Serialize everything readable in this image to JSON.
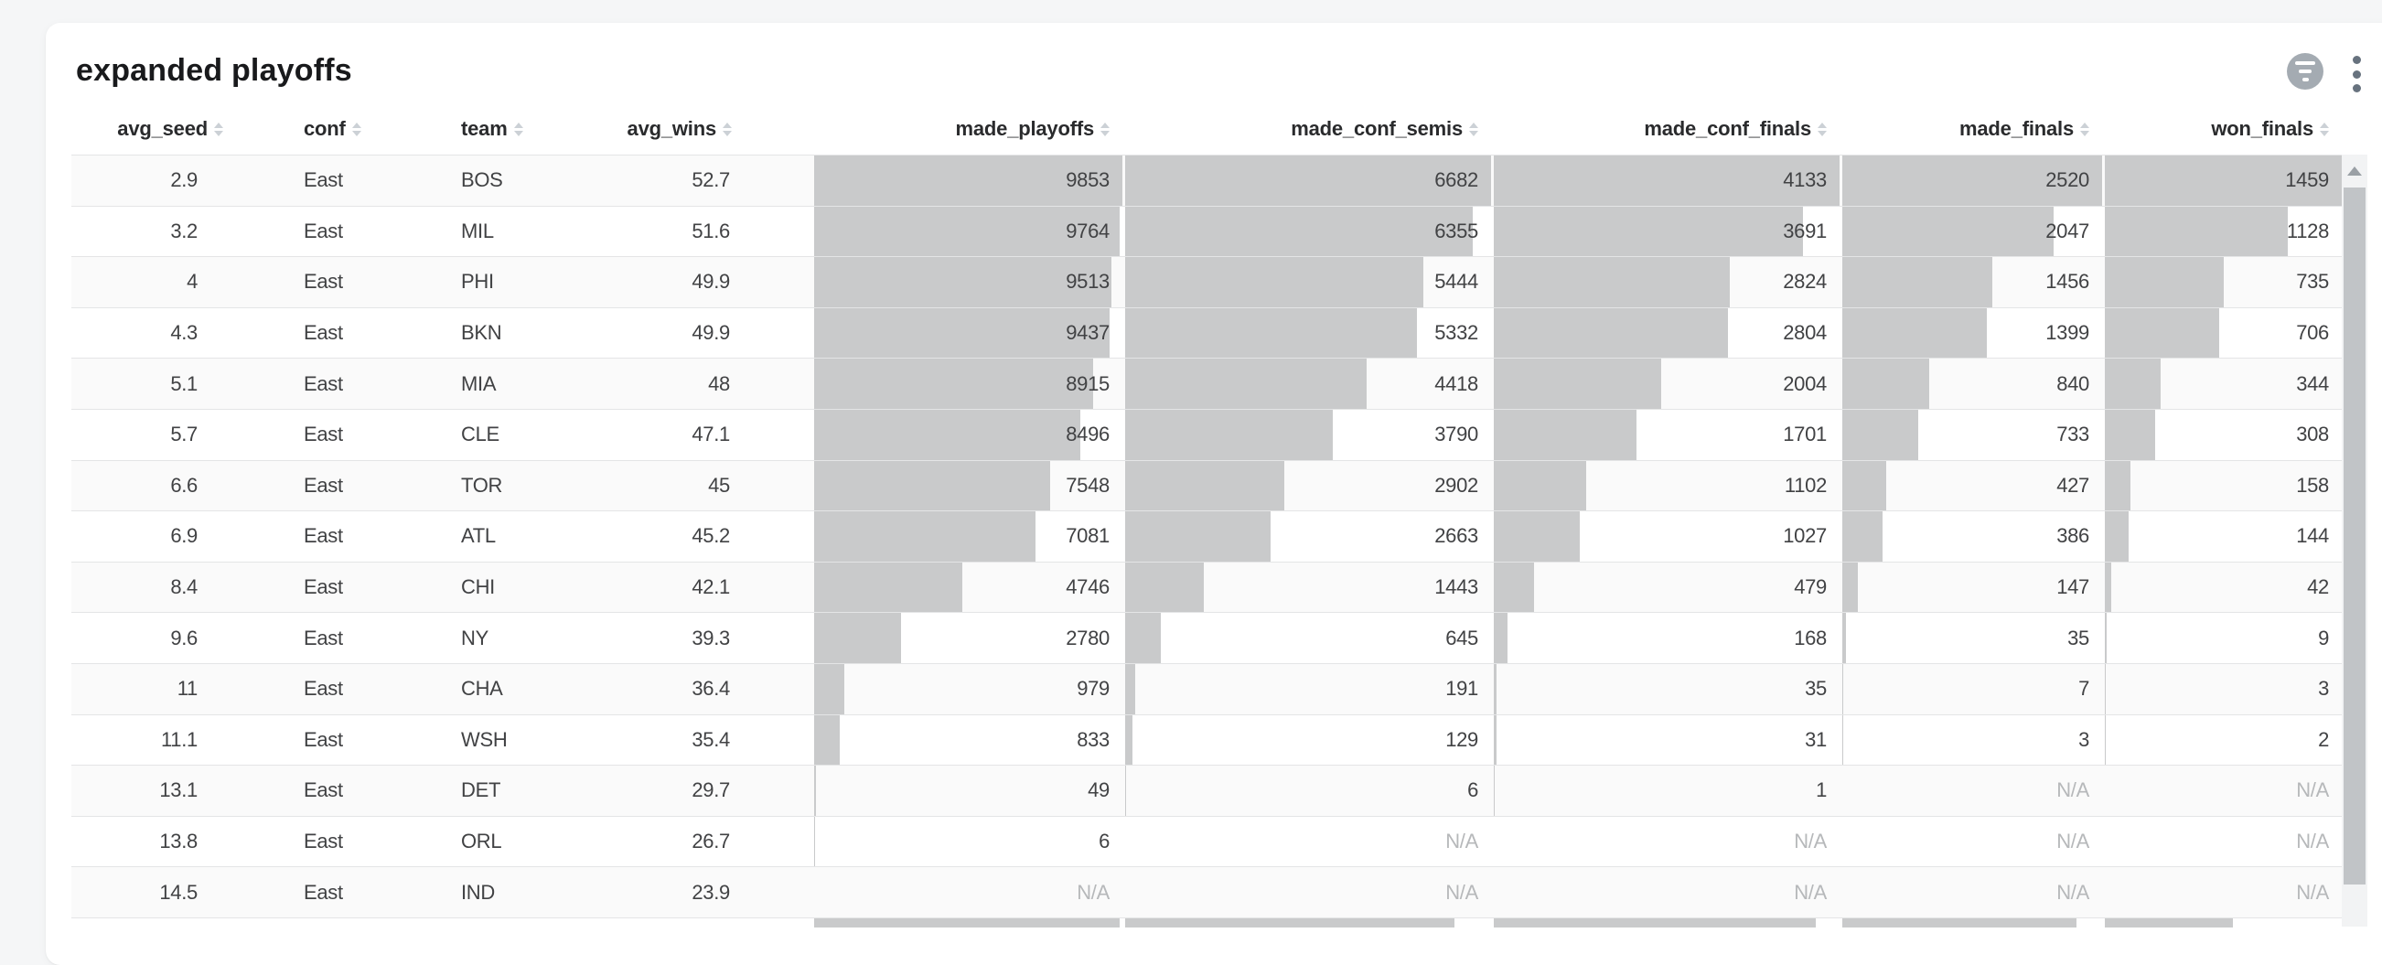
{
  "window": {
    "title": "expanded playoffs"
  },
  "toolbar": {
    "filter_button": {
      "icon": "filter-lines-icon"
    },
    "menu_button": {
      "icon": "kebab-menu-icon"
    }
  },
  "colors": {
    "bar_fill": "#c9cacb",
    "na_text": "#b6b8ba",
    "header_text": "#2a2b2d",
    "cell_text": "#414244"
  },
  "table": {
    "na_label": "N/A",
    "columns": [
      {
        "key": "avg_seed",
        "label": "avg_seed",
        "align": "right",
        "bar": false
      },
      {
        "key": "conf",
        "label": "conf",
        "align": "left",
        "bar": false
      },
      {
        "key": "team",
        "label": "team",
        "align": "left",
        "bar": false
      },
      {
        "key": "avg_wins",
        "label": "avg_wins",
        "align": "right",
        "bar": false
      },
      {
        "key": "made_playoffs",
        "label": "made_playoffs",
        "align": "right",
        "bar": true,
        "max": 9853
      },
      {
        "key": "made_conf_semis",
        "label": "made_conf_semis",
        "align": "right",
        "bar": true,
        "max": 6682
      },
      {
        "key": "made_conf_finals",
        "label": "made_conf_finals",
        "align": "right",
        "bar": true,
        "max": 4133
      },
      {
        "key": "made_finals",
        "label": "made_finals",
        "align": "right",
        "bar": true,
        "max": 2520
      },
      {
        "key": "won_finals",
        "label": "won_finals",
        "align": "right",
        "bar": true,
        "max": 1459
      }
    ],
    "rows": [
      {
        "avg_seed": "2.9",
        "conf": "East",
        "team": "BOS",
        "avg_wins": "52.7",
        "made_playoffs": "9853",
        "made_conf_semis": "6682",
        "made_conf_finals": "4133",
        "made_finals": "2520",
        "won_finals": "1459"
      },
      {
        "avg_seed": "3.2",
        "conf": "East",
        "team": "MIL",
        "avg_wins": "51.6",
        "made_playoffs": "9764",
        "made_conf_semis": "6355",
        "made_conf_finals": "3691",
        "made_finals": "2047",
        "won_finals": "1128"
      },
      {
        "avg_seed": "4",
        "conf": "East",
        "team": "PHI",
        "avg_wins": "49.9",
        "made_playoffs": "9513",
        "made_conf_semis": "5444",
        "made_conf_finals": "2824",
        "made_finals": "1456",
        "won_finals": "735"
      },
      {
        "avg_seed": "4.3",
        "conf": "East",
        "team": "BKN",
        "avg_wins": "49.9",
        "made_playoffs": "9437",
        "made_conf_semis": "5332",
        "made_conf_finals": "2804",
        "made_finals": "1399",
        "won_finals": "706"
      },
      {
        "avg_seed": "5.1",
        "conf": "East",
        "team": "MIA",
        "avg_wins": "48",
        "made_playoffs": "8915",
        "made_conf_semis": "4418",
        "made_conf_finals": "2004",
        "made_finals": "840",
        "won_finals": "344"
      },
      {
        "avg_seed": "5.7",
        "conf": "East",
        "team": "CLE",
        "avg_wins": "47.1",
        "made_playoffs": "8496",
        "made_conf_semis": "3790",
        "made_conf_finals": "1701",
        "made_finals": "733",
        "won_finals": "308"
      },
      {
        "avg_seed": "6.6",
        "conf": "East",
        "team": "TOR",
        "avg_wins": "45",
        "made_playoffs": "7548",
        "made_conf_semis": "2902",
        "made_conf_finals": "1102",
        "made_finals": "427",
        "won_finals": "158"
      },
      {
        "avg_seed": "6.9",
        "conf": "East",
        "team": "ATL",
        "avg_wins": "45.2",
        "made_playoffs": "7081",
        "made_conf_semis": "2663",
        "made_conf_finals": "1027",
        "made_finals": "386",
        "won_finals": "144"
      },
      {
        "avg_seed": "8.4",
        "conf": "East",
        "team": "CHI",
        "avg_wins": "42.1",
        "made_playoffs": "4746",
        "made_conf_semis": "1443",
        "made_conf_finals": "479",
        "made_finals": "147",
        "won_finals": "42"
      },
      {
        "avg_seed": "9.6",
        "conf": "East",
        "team": "NY",
        "avg_wins": "39.3",
        "made_playoffs": "2780",
        "made_conf_semis": "645",
        "made_conf_finals": "168",
        "made_finals": "35",
        "won_finals": "9"
      },
      {
        "avg_seed": "11",
        "conf": "East",
        "team": "CHA",
        "avg_wins": "36.4",
        "made_playoffs": "979",
        "made_conf_semis": "191",
        "made_conf_finals": "35",
        "made_finals": "7",
        "won_finals": "3"
      },
      {
        "avg_seed": "11.1",
        "conf": "East",
        "team": "WSH",
        "avg_wins": "35.4",
        "made_playoffs": "833",
        "made_conf_semis": "129",
        "made_conf_finals": "31",
        "made_finals": "3",
        "won_finals": "2"
      },
      {
        "avg_seed": "13.1",
        "conf": "East",
        "team": "DET",
        "avg_wins": "29.7",
        "made_playoffs": "49",
        "made_conf_semis": "6",
        "made_conf_finals": "1",
        "made_finals": "N/A",
        "won_finals": "N/A"
      },
      {
        "avg_seed": "13.8",
        "conf": "East",
        "team": "ORL",
        "avg_wins": "26.7",
        "made_playoffs": "6",
        "made_conf_semis": "N/A",
        "made_conf_finals": "N/A",
        "made_finals": "N/A",
        "won_finals": "N/A"
      },
      {
        "avg_seed": "14.5",
        "conf": "East",
        "team": "IND",
        "avg_wins": "23.9",
        "made_playoffs": "N/A",
        "made_conf_semis": "N/A",
        "made_conf_finals": "N/A",
        "made_finals": "N/A",
        "won_finals": "N/A"
      }
    ],
    "partial_next_row_bar_fractions": {
      "made_playoffs": 0.99,
      "made_conf_semis": 0.9,
      "made_conf_finals": 0.93,
      "made_finals": 0.9,
      "won_finals": 0.54
    }
  }
}
